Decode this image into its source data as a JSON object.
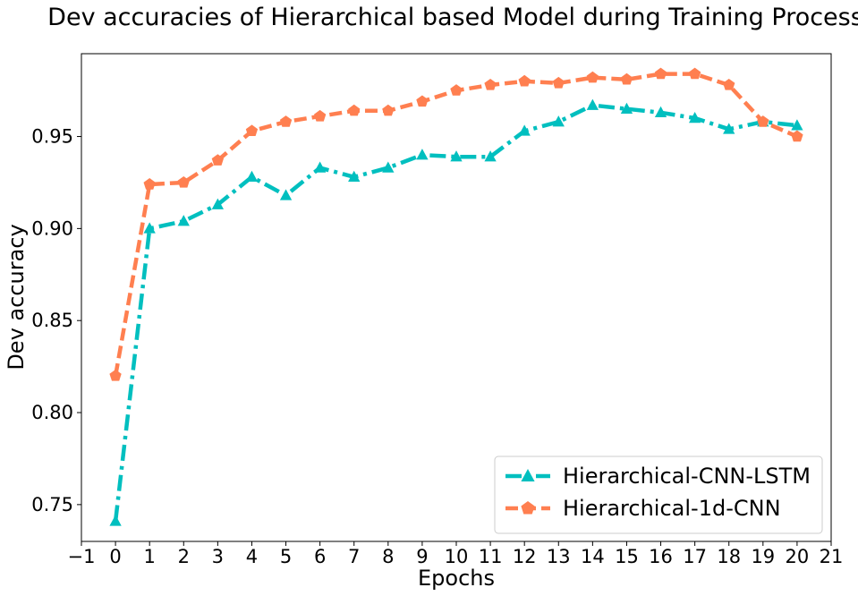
{
  "chart_data": {
    "type": "line",
    "title": "Dev accuracies of Hierarchical based Model during Training Process",
    "xlabel": "Epochs",
    "ylabel": "Dev accuracy",
    "xlim": [
      -1,
      21
    ],
    "ylim": [
      0.73,
      0.995
    ],
    "xticks": [
      "−1",
      "0",
      "1",
      "2",
      "3",
      "4",
      "5",
      "6",
      "7",
      "8",
      "9",
      "10",
      "11",
      "12",
      "13",
      "14",
      "15",
      "16",
      "17",
      "18",
      "19",
      "20",
      "21"
    ],
    "xtick_values": [
      -1,
      0,
      1,
      2,
      3,
      4,
      5,
      6,
      7,
      8,
      9,
      10,
      11,
      12,
      13,
      14,
      15,
      16,
      17,
      18,
      19,
      20,
      21
    ],
    "yticks": [
      "0.75",
      "0.80",
      "0.85",
      "0.90",
      "0.95"
    ],
    "ytick_values": [
      0.75,
      0.8,
      0.85,
      0.9,
      0.95
    ],
    "grid": false,
    "legend_position": "lower-right",
    "x": [
      0,
      1,
      2,
      3,
      4,
      5,
      6,
      7,
      8,
      9,
      10,
      11,
      12,
      13,
      14,
      15,
      16,
      17,
      18,
      19,
      20
    ],
    "series": [
      {
        "name": "Hierarchical-CNN-LSTM",
        "color": "#00bfbf",
        "line_style": "dash-dot",
        "marker": "triangle",
        "values": [
          0.741,
          0.9,
          0.904,
          0.913,
          0.928,
          0.918,
          0.933,
          0.928,
          0.933,
          0.94,
          0.939,
          0.939,
          0.953,
          0.958,
          0.967,
          0.965,
          0.963,
          0.96,
          0.954,
          0.958,
          0.956
        ]
      },
      {
        "name": "Hierarchical-1d-CNN",
        "color": "#ff7f50",
        "line_style": "dashed",
        "marker": "pentagon",
        "values": [
          0.82,
          0.924,
          0.925,
          0.937,
          0.953,
          0.958,
          0.961,
          0.964,
          0.964,
          0.969,
          0.975,
          0.978,
          0.98,
          0.979,
          0.982,
          0.981,
          0.984,
          0.984,
          0.978,
          0.958,
          0.95
        ]
      }
    ]
  }
}
